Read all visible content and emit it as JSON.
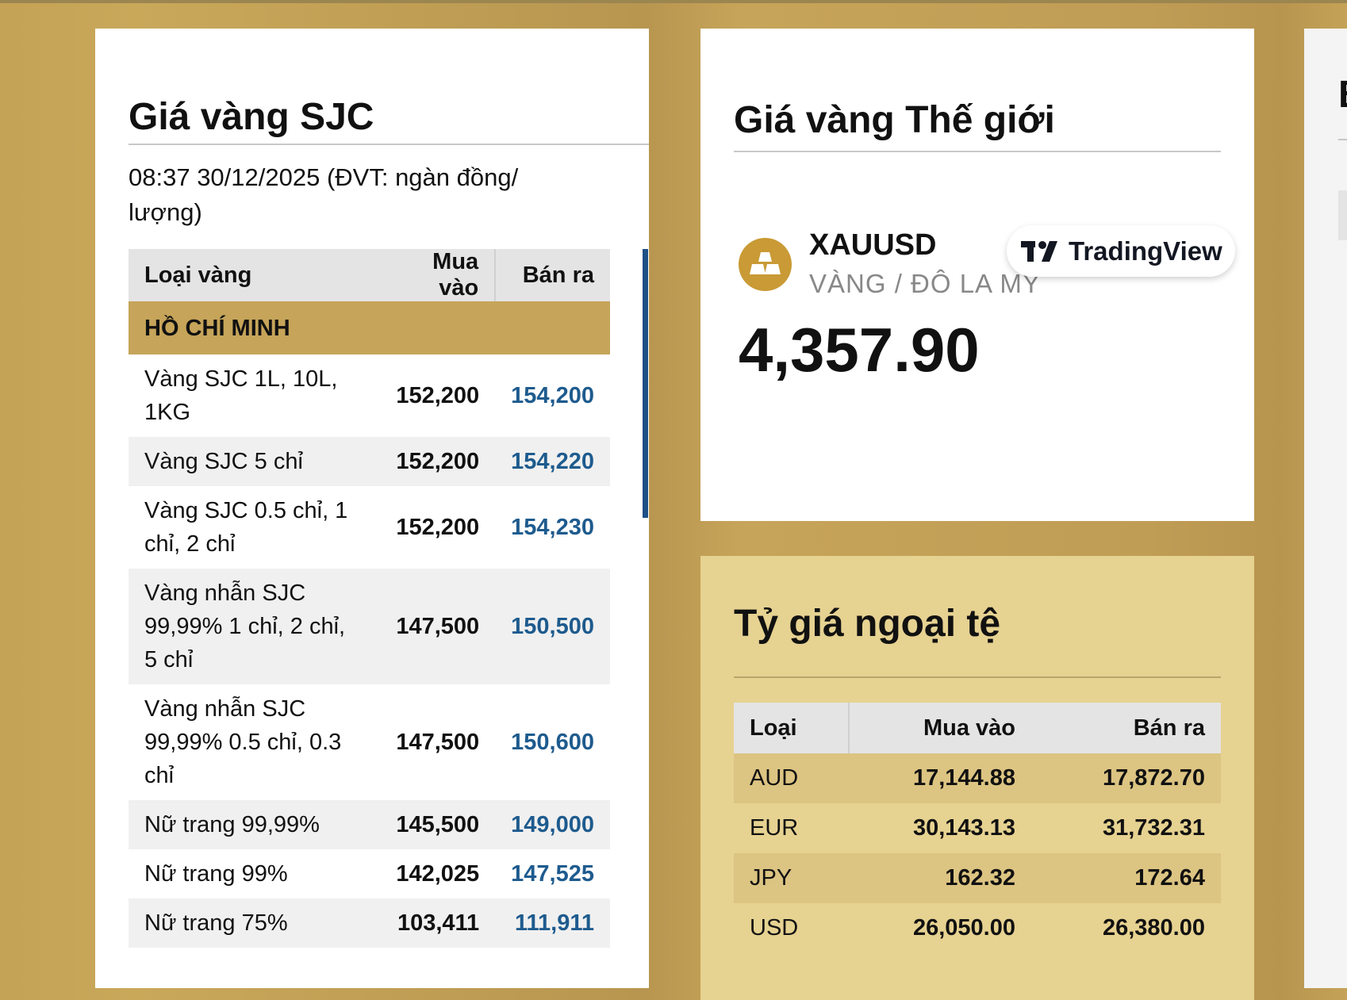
{
  "sjc": {
    "title": "Giá vàng SJC",
    "updated": "08:37 30/12/2025 (ĐVT: ngàn đồng/ lượng)",
    "columns": [
      "Loại vàng",
      "Mua vào",
      "Bán ra"
    ],
    "region": "HỒ CHÍ MINH",
    "rows": [
      {
        "name": "Vàng SJC 1L, 10L, 1KG",
        "buy": "152,200",
        "sell": "154,200"
      },
      {
        "name": "Vàng SJC 5 chỉ",
        "buy": "152,200",
        "sell": "154,220"
      },
      {
        "name": "Vàng SJC 0.5 chỉ, 1 chỉ, 2 chỉ",
        "buy": "152,200",
        "sell": "154,230"
      },
      {
        "name": "Vàng nhẫn SJC 99,99% 1 chỉ, 2 chỉ, 5 chỉ",
        "buy": "147,500",
        "sell": "150,500"
      },
      {
        "name": "Vàng nhẫn SJC 99,99% 0.5 chỉ, 0.3 chỉ",
        "buy": "147,500",
        "sell": "150,600"
      },
      {
        "name": "Nữ trang 99,99%",
        "buy": "145,500",
        "sell": "149,000"
      },
      {
        "name": "Nữ trang 99%",
        "buy": "142,025",
        "sell": "147,525"
      },
      {
        "name": "Nữ trang 75%",
        "buy": "103,411",
        "sell": "111,911"
      }
    ]
  },
  "world": {
    "title": "Giá vàng Thế giới",
    "symbol": "XAUUSD",
    "description": "VÀNG / ĐÔ LA MỸ",
    "price": "4,357.90",
    "widget_brand": "TradingView",
    "icon": "gold-bars-icon",
    "accent": "#c99a35"
  },
  "fx": {
    "title": "Tỷ giá ngoại tệ",
    "columns": [
      "Loại",
      "Mua vào",
      "Bán ra"
    ],
    "rows": [
      {
        "code": "AUD",
        "buy": "17,144.88",
        "sell": "17,872.70"
      },
      {
        "code": "EUR",
        "buy": "30,143.13",
        "sell": "31,732.31"
      },
      {
        "code": "JPY",
        "buy": "162.32",
        "sell": "172.64"
      },
      {
        "code": "USD",
        "buy": "26,050.00",
        "sell": "26,380.00"
      }
    ]
  },
  "right_card": {
    "title_partial": "B"
  }
}
